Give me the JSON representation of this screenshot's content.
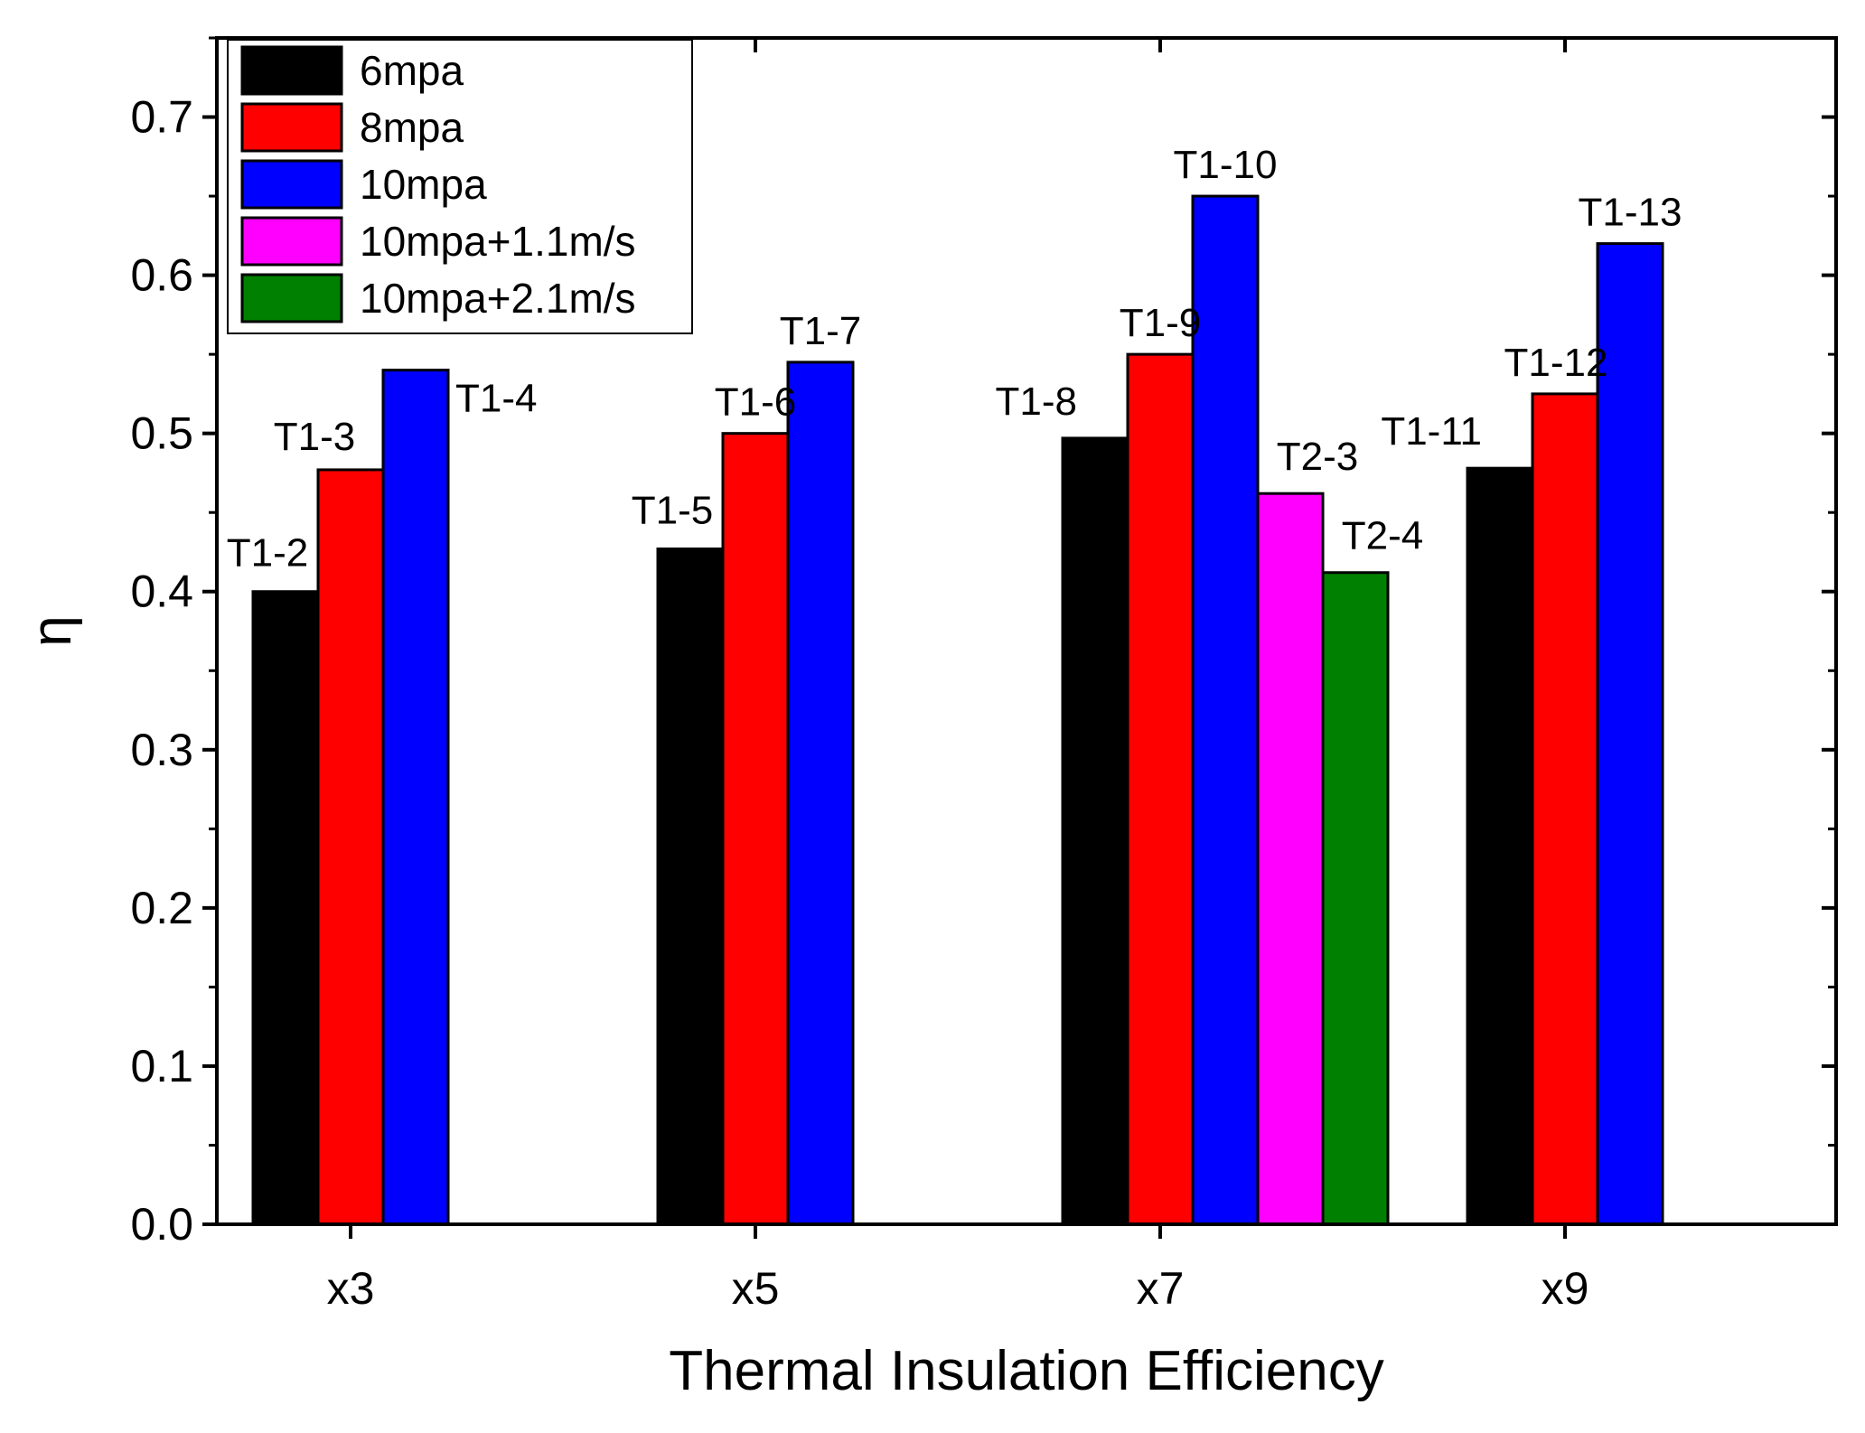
{
  "chart_data": {
    "type": "bar",
    "title": "",
    "xlabel": "Thermal Insulation Efficiency",
    "ylabel": "η",
    "ylim": [
      0.0,
      0.75
    ],
    "yticks": [
      "0.0",
      "0.1",
      "0.2",
      "0.3",
      "0.4",
      "0.5",
      "0.6",
      "0.7"
    ],
    "categories": [
      "x3",
      "x5",
      "x7",
      "x9"
    ],
    "legend_position": "top-left",
    "grid": false,
    "series": [
      {
        "name": "6mpa",
        "color": "#000000",
        "values": [
          0.4,
          0.427,
          0.497,
          0.478
        ],
        "labels": [
          "T1-2",
          "T1-5",
          "T1-8",
          "T1-11"
        ]
      },
      {
        "name": "8mpa",
        "color": "#ff0000",
        "values": [
          0.477,
          0.5,
          0.55,
          0.525
        ],
        "labels": [
          "T1-3",
          "T1-6",
          "T1-9",
          "T1-12"
        ]
      },
      {
        "name": "10mpa",
        "color": "#0000ff",
        "values": [
          0.54,
          0.545,
          0.65,
          0.62
        ],
        "labels": [
          "T1-4",
          "T1-7",
          "T1-10",
          "T1-13"
        ]
      },
      {
        "name": "10mpa+1.1m/s",
        "color": "#ff00ff",
        "values": [
          null,
          null,
          0.462,
          null
        ],
        "labels": [
          "",
          "",
          "T2-3",
          ""
        ]
      },
      {
        "name": "10mpa+2.1m/s",
        "color": "#008000",
        "values": [
          null,
          null,
          0.412,
          null
        ],
        "labels": [
          "",
          "",
          "T2-4",
          ""
        ]
      }
    ]
  }
}
